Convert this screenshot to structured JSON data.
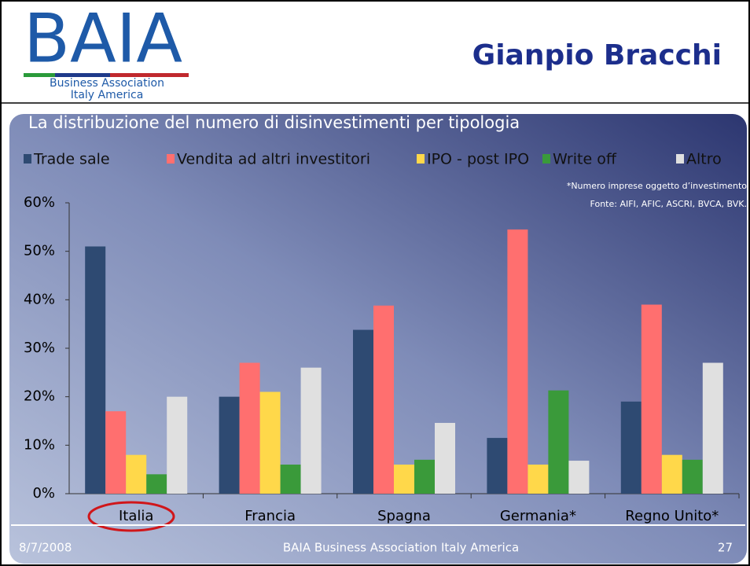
{
  "header": {
    "logo": "BAIA",
    "logo_line1": "Business Association",
    "logo_line2": "Italy America",
    "title": "Gianpio Bracchi"
  },
  "chart_data": {
    "type": "bar",
    "title": "La distribuzione del numero di  disinvestimenti per tipologia",
    "notes": [
      "*Numero imprese oggetto d’investimento",
      "Fonte: AIFI, AFIC, ASCRI, BVCA, BVK."
    ],
    "categories": [
      "Italia",
      "Francia",
      "Spagna",
      "Germania*",
      "Regno Unito*"
    ],
    "series": [
      {
        "name": "Trade sale",
        "color": "#2e4a72",
        "values": [
          51,
          20,
          33.8,
          11.5,
          19
        ]
      },
      {
        "name": "Vendita ad altri investitori",
        "color": "#ff6f6f",
        "values": [
          17,
          27,
          38.8,
          54.5,
          39
        ]
      },
      {
        "name": "IPO - post IPO",
        "color": "#ffd84a",
        "values": [
          8,
          21,
          6,
          6,
          8
        ]
      },
      {
        "name": "Write off",
        "color": "#3a9a3a",
        "values": [
          4,
          6,
          7,
          21.3,
          7
        ]
      },
      {
        "name": "Altro",
        "color": "#e0e0e0",
        "values": [
          20,
          26,
          14.6,
          6.8,
          27
        ]
      }
    ],
    "ylim": [
      0,
      60
    ],
    "yticks": [
      {
        "value": 0,
        "label": "0%"
      },
      {
        "value": 10,
        "label": "10%"
      },
      {
        "value": 20,
        "label": "20%"
      },
      {
        "value": 30,
        "label": "30%"
      },
      {
        "value": 40,
        "label": "40%"
      },
      {
        "value": 50,
        "label": "50%"
      },
      {
        "value": 60,
        "label": "60%"
      }
    ],
    "legend": "top"
  },
  "footer": {
    "date": "8/7/2008",
    "center": "BAIA Business Association Italy America",
    "page": "27"
  }
}
